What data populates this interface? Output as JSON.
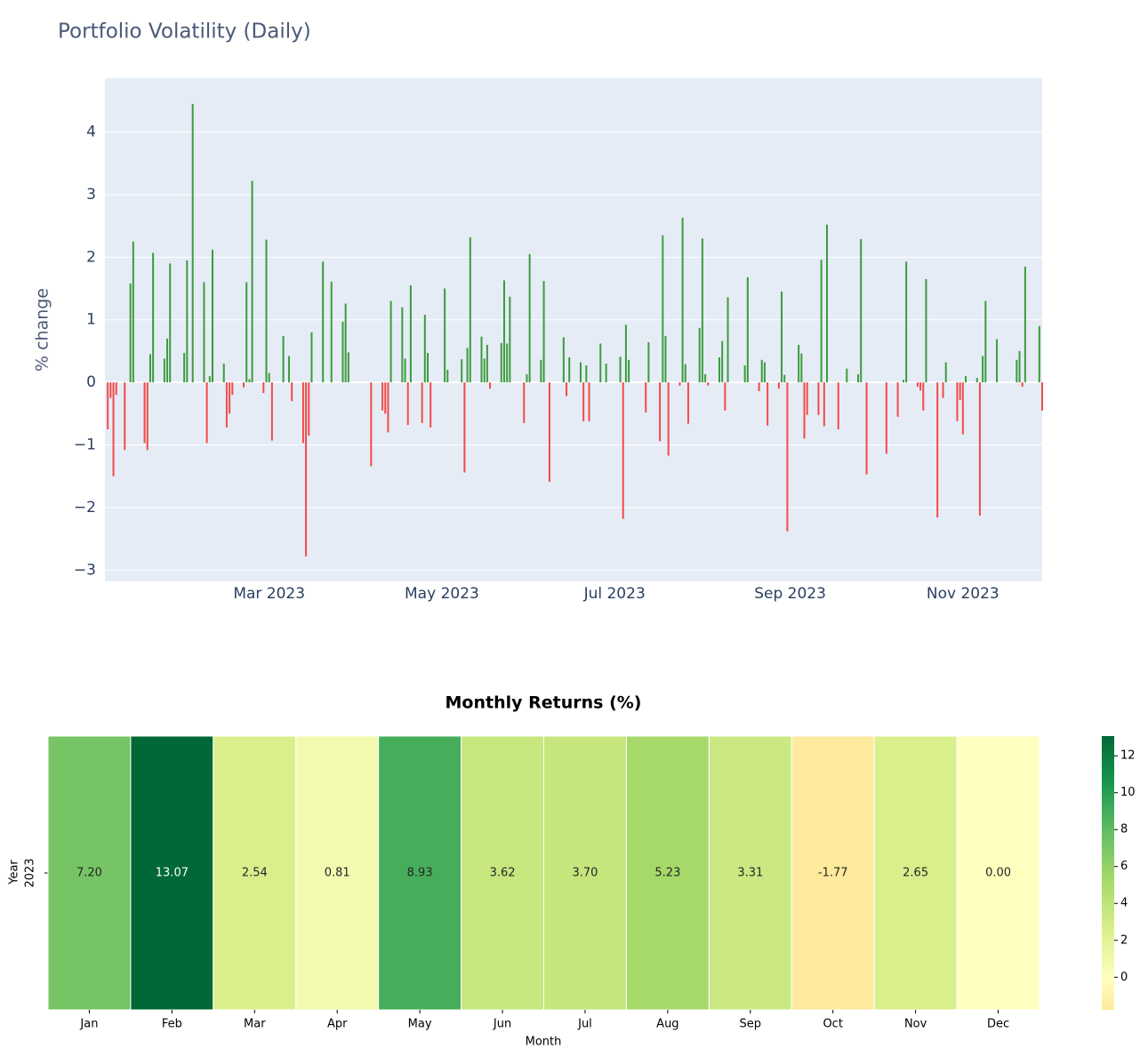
{
  "chart_data": [
    {
      "type": "bar",
      "title": "Portfolio Volatility (Daily)",
      "ylabel": "% change",
      "positive_color": "#3d9b3d",
      "negative_color": "#f44a4a",
      "grid": true,
      "xlim": [
        "2023-01-02",
        "2023-11-29"
      ],
      "xticks": [
        {
          "value": "2023-03-01",
          "label": "Mar 2023"
        },
        {
          "value": "2023-05-01",
          "label": "May 2023"
        },
        {
          "value": "2023-07-01",
          "label": "Jul 2023"
        },
        {
          "value": "2023-09-01",
          "label": "Sep 2023"
        },
        {
          "value": "2023-11-01",
          "label": "Nov 2023"
        }
      ],
      "ylim": [
        -3.18,
        4.86
      ],
      "yticks": [
        {
          "value": -3,
          "label": "−3"
        },
        {
          "value": -2,
          "label": "−2"
        },
        {
          "value": -1,
          "label": "−1"
        },
        0,
        1,
        2,
        3,
        4
      ],
      "x": [
        "2023-01-03",
        "2023-01-04",
        "2023-01-05",
        "2023-01-06",
        "2023-01-09",
        "2023-01-11",
        "2023-01-12",
        "2023-01-16",
        "2023-01-17",
        "2023-01-18",
        "2023-01-19",
        "2023-01-23",
        "2023-01-24",
        "2023-01-25",
        "2023-01-30",
        "2023-01-31",
        "2023-02-02",
        "2023-02-06",
        "2023-02-07",
        "2023-02-08",
        "2023-02-09",
        "2023-02-13",
        "2023-02-14",
        "2023-02-15",
        "2023-02-16",
        "2023-02-20",
        "2023-02-21",
        "2023-02-22",
        "2023-02-23",
        "2023-02-27",
        "2023-02-28",
        "2023-03-01",
        "2023-03-02",
        "2023-03-06",
        "2023-03-08",
        "2023-03-09",
        "2023-03-13",
        "2023-03-14",
        "2023-03-15",
        "2023-03-16",
        "2023-03-20",
        "2023-03-23",
        "2023-03-27",
        "2023-03-28",
        "2023-03-29",
        "2023-04-06",
        "2023-04-10",
        "2023-04-11",
        "2023-04-12",
        "2023-04-13",
        "2023-04-17",
        "2023-04-18",
        "2023-04-19",
        "2023-04-20",
        "2023-04-24",
        "2023-04-25",
        "2023-04-26",
        "2023-04-27",
        "2023-05-02",
        "2023-05-03",
        "2023-05-08",
        "2023-05-09",
        "2023-05-10",
        "2023-05-11",
        "2023-05-15",
        "2023-05-16",
        "2023-05-17",
        "2023-05-18",
        "2023-05-22",
        "2023-05-23",
        "2023-05-24",
        "2023-05-25",
        "2023-05-30",
        "2023-05-31",
        "2023-06-01",
        "2023-06-05",
        "2023-06-06",
        "2023-06-08",
        "2023-06-13",
        "2023-06-14",
        "2023-06-15",
        "2023-06-19",
        "2023-06-20",
        "2023-06-21",
        "2023-06-22",
        "2023-06-26",
        "2023-06-28",
        "2023-07-03",
        "2023-07-04",
        "2023-07-05",
        "2023-07-06",
        "2023-07-12",
        "2023-07-13",
        "2023-07-17",
        "2023-07-18",
        "2023-07-19",
        "2023-07-20",
        "2023-07-24",
        "2023-07-25",
        "2023-07-26",
        "2023-07-27",
        "2023-07-31",
        "2023-08-01",
        "2023-08-02",
        "2023-08-03",
        "2023-08-07",
        "2023-08-08",
        "2023-08-09",
        "2023-08-10",
        "2023-08-16",
        "2023-08-17",
        "2023-08-21",
        "2023-08-22",
        "2023-08-23",
        "2023-08-24",
        "2023-08-28",
        "2023-08-29",
        "2023-08-30",
        "2023-08-31",
        "2023-09-04",
        "2023-09-05",
        "2023-09-06",
        "2023-09-07",
        "2023-09-11",
        "2023-09-12",
        "2023-09-13",
        "2023-09-14",
        "2023-09-18",
        "2023-09-21",
        "2023-09-25",
        "2023-09-26",
        "2023-09-28",
        "2023-10-05",
        "2023-10-09",
        "2023-10-11",
        "2023-10-12",
        "2023-10-16",
        "2023-10-17",
        "2023-10-18",
        "2023-10-19",
        "2023-10-23",
        "2023-10-25",
        "2023-10-26",
        "2023-10-30",
        "2023-10-31",
        "2023-11-01",
        "2023-11-02",
        "2023-11-06",
        "2023-11-07",
        "2023-11-08",
        "2023-11-09",
        "2023-11-13",
        "2023-11-20",
        "2023-11-21",
        "2023-11-22",
        "2023-11-23",
        "2023-11-28",
        "2023-11-29"
      ],
      "values": [
        -0.75,
        -0.25,
        -1.5,
        -0.2,
        -1.08,
        1.58,
        2.25,
        -0.97,
        -1.08,
        0.45,
        2.07,
        0.38,
        0.7,
        1.9,
        0.47,
        1.95,
        4.45,
        1.6,
        -0.97,
        0.1,
        2.12,
        0.3,
        -0.72,
        -0.5,
        -0.2,
        -0.08,
        1.6,
        0.05,
        3.22,
        -0.17,
        2.28,
        0.15,
        -0.93,
        0.74,
        0.42,
        -0.3,
        -0.97,
        -2.78,
        -0.85,
        0.8,
        1.93,
        1.61,
        0.97,
        1.26,
        0.48,
        -1.34,
        -0.45,
        -0.5,
        -0.8,
        1.3,
        1.2,
        0.38,
        -0.68,
        1.55,
        -0.65,
        1.08,
        0.47,
        -0.72,
        1.5,
        0.2,
        0.37,
        -1.44,
        0.55,
        2.32,
        0.73,
        0.38,
        0.6,
        -0.1,
        0.63,
        1.63,
        0.62,
        1.37,
        -0.65,
        0.13,
        2.05,
        0.36,
        1.62,
        -1.59,
        0.72,
        -0.22,
        0.4,
        0.32,
        -0.62,
        0.27,
        -0.62,
        0.62,
        0.3,
        0.41,
        -2.18,
        0.92,
        0.36,
        -0.48,
        0.64,
        -0.94,
        2.35,
        0.74,
        -1.17,
        -0.05,
        2.63,
        0.29,
        -0.66,
        0.87,
        2.3,
        0.13,
        -0.05,
        0.4,
        0.66,
        -0.45,
        1.36,
        0.27,
        1.68,
        -0.14,
        0.36,
        0.32,
        -0.69,
        -0.1,
        1.45,
        0.12,
        -2.38,
        0.6,
        0.46,
        -0.9,
        -0.52,
        -0.52,
        1.96,
        -0.7,
        2.52,
        -0.75,
        0.22,
        0.13,
        2.29,
        -1.47,
        -1.14,
        -0.55,
        0.04,
        1.93,
        -0.07,
        -0.13,
        -0.45,
        1.65,
        -2.16,
        -0.25,
        0.32,
        -0.62,
        -0.28,
        -0.83,
        0.1,
        0.07,
        -2.13,
        0.42,
        1.3,
        0.69,
        0.36,
        0.5,
        -0.07,
        1.85,
        0.9,
        -0.45
      ]
    },
    {
      "type": "heatmap",
      "title": "Monthly Returns (%)",
      "xlabel": "Month",
      "ylabel": "Year",
      "x": [
        "Jan",
        "Feb",
        "Mar",
        "Apr",
        "May",
        "Jun",
        "Jul",
        "Aug",
        "Sep",
        "Oct",
        "Nov",
        "Dec"
      ],
      "y": [
        "2023"
      ],
      "z": [
        [
          7.2,
          13.07,
          2.54,
          0.81,
          8.93,
          3.62,
          3.7,
          5.23,
          3.31,
          -1.77,
          2.65,
          0
        ]
      ],
      "value_labels": [
        [
          "7.20",
          "13.07",
          "2.54",
          "0.81",
          "8.93",
          "3.62",
          "3.70",
          "5.23",
          "3.31",
          "-1.77",
          "2.65",
          "0.00"
        ]
      ],
      "cmap": "RdYlGn",
      "center": 0,
      "zlim": [
        -1.77,
        13.07
      ],
      "zticks": [
        0,
        2,
        4,
        6,
        8,
        10,
        12
      ]
    }
  ]
}
